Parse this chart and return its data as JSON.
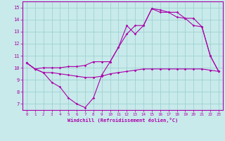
{
  "xlabel": "Windchill (Refroidissement éolien,°C)",
  "xlim": [
    -0.5,
    23.5
  ],
  "ylim": [
    6.5,
    15.5
  ],
  "yticks": [
    7,
    8,
    9,
    10,
    11,
    12,
    13,
    14,
    15
  ],
  "xticks": [
    0,
    1,
    2,
    3,
    4,
    5,
    6,
    7,
    8,
    9,
    10,
    11,
    12,
    13,
    14,
    15,
    16,
    17,
    18,
    19,
    20,
    21,
    22,
    23
  ],
  "bg_color": "#c8eaea",
  "line_color": "#aa00aa",
  "grid_color": "#99cccc",
  "lines": [
    {
      "x": [
        0,
        1,
        2,
        3,
        4,
        5,
        6,
        7,
        8,
        9,
        10,
        11,
        12,
        13,
        14,
        15,
        16,
        17,
        18,
        19,
        20,
        21,
        22,
        23
      ],
      "y": [
        10.4,
        9.9,
        9.6,
        8.8,
        8.4,
        7.5,
        7.0,
        6.7,
        7.5,
        9.4,
        10.5,
        11.7,
        12.8,
        13.5,
        13.5,
        14.9,
        14.8,
        14.6,
        14.6,
        14.1,
        14.1,
        13.4,
        11.0,
        9.7
      ]
    },
    {
      "x": [
        0,
        1,
        2,
        3,
        4,
        5,
        6,
        7,
        8,
        9,
        10,
        11,
        12,
        13,
        14,
        15,
        16,
        17,
        18,
        19,
        20,
        21,
        22,
        23
      ],
      "y": [
        10.4,
        9.9,
        9.6,
        9.6,
        9.5,
        9.4,
        9.3,
        9.2,
        9.2,
        9.3,
        9.5,
        9.6,
        9.7,
        9.8,
        9.9,
        9.9,
        9.9,
        9.9,
        9.9,
        9.9,
        9.9,
        9.9,
        9.8,
        9.7
      ]
    },
    {
      "x": [
        0,
        1,
        2,
        3,
        4,
        5,
        6,
        7,
        8,
        9,
        10,
        11,
        12,
        13,
        14,
        15,
        16,
        17,
        18,
        19,
        20,
        21,
        22,
        23
      ],
      "y": [
        10.4,
        9.9,
        10.0,
        10.0,
        10.0,
        10.1,
        10.1,
        10.2,
        10.5,
        10.5,
        10.5,
        11.7,
        13.5,
        12.8,
        13.5,
        14.9,
        14.6,
        14.6,
        14.2,
        14.1,
        13.5,
        13.4,
        11.0,
        9.7
      ]
    }
  ]
}
